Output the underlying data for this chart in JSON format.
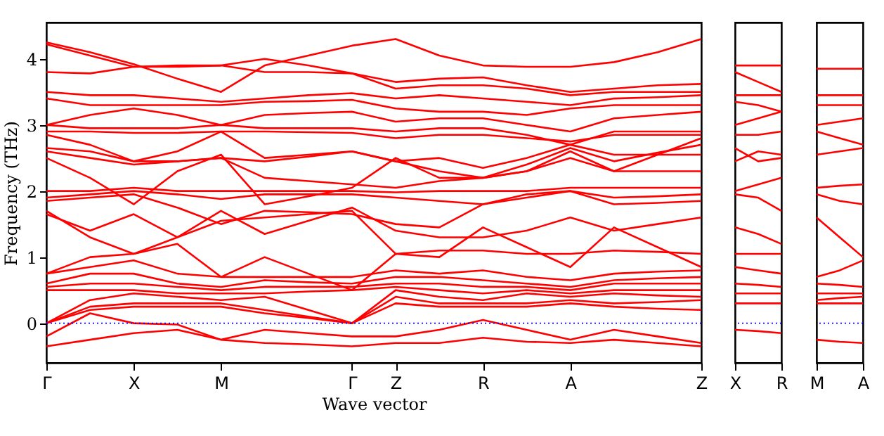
{
  "chart_data": [
    {
      "type": "line",
      "xlabel": "Wave vector",
      "ylabel": "Frequency (THz)",
      "categories": [
        "Γ",
        null,
        "X",
        null,
        "M",
        null,
        null,
        "Γ",
        "Z",
        null,
        "R",
        null,
        "A",
        null,
        null,
        "Z"
      ],
      "ylim": [
        -0.6,
        4.55
      ],
      "yticks": [
        0,
        1,
        2,
        3,
        4
      ],
      "grid": false,
      "line_style": "solid",
      "marker": "none",
      "ref_lines": [
        {
          "axis": "y",
          "value": 0,
          "color": "#0000ff",
          "line_style": "dotted"
        }
      ],
      "series": [
        {
          "color": "#ff0000",
          "values": [
            4.25,
            4.1,
            3.92,
            3.7,
            3.5,
            3.9,
            4.05,
            4.2,
            4.3,
            4.05,
            3.9,
            3.88,
            3.88,
            3.95,
            4.1,
            4.3
          ]
        },
        {
          "color": "#ff0000",
          "values": [
            4.22,
            4.05,
            3.88,
            3.9,
            3.9,
            4.0,
            3.9,
            3.78,
            3.65,
            3.7,
            3.72,
            3.6,
            3.5,
            3.55,
            3.6,
            3.62
          ]
        },
        {
          "color": "#ff0000",
          "values": [
            3.8,
            3.78,
            3.88,
            3.88,
            3.9,
            3.8,
            3.8,
            3.78,
            3.55,
            3.6,
            3.6,
            3.55,
            3.45,
            3.5,
            3.5,
            3.5
          ]
        },
        {
          "color": "#ff0000",
          "values": [
            3.5,
            3.45,
            3.45,
            3.4,
            3.35,
            3.4,
            3.45,
            3.48,
            3.4,
            3.45,
            3.4,
            3.35,
            3.3,
            3.4,
            3.42,
            3.45
          ]
        },
        {
          "color": "#ff0000",
          "values": [
            3.4,
            3.3,
            3.3,
            3.3,
            3.3,
            3.35,
            3.36,
            3.38,
            3.25,
            3.2,
            3.2,
            3.15,
            3.25,
            3.3,
            3.3,
            3.3
          ]
        },
        {
          "color": "#ff0000",
          "values": [
            3.0,
            3.15,
            3.25,
            3.15,
            3.0,
            3.15,
            3.18,
            3.2,
            3.05,
            3.1,
            3.1,
            3.0,
            2.9,
            3.1,
            3.15,
            3.2
          ]
        },
        {
          "color": "#ff0000",
          "values": [
            3.0,
            2.95,
            2.95,
            2.95,
            3.0,
            2.95,
            2.95,
            2.95,
            2.9,
            2.95,
            2.95,
            2.85,
            2.7,
            2.9,
            2.9,
            2.9
          ]
        },
        {
          "color": "#ff0000",
          "values": [
            2.9,
            2.9,
            2.88,
            2.88,
            2.9,
            2.9,
            2.89,
            2.88,
            2.8,
            2.85,
            2.85,
            2.8,
            2.75,
            2.85,
            2.85,
            2.85
          ]
        },
        {
          "color": "#ff0000",
          "values": [
            2.85,
            2.7,
            2.45,
            2.6,
            2.9,
            2.5,
            2.55,
            2.6,
            2.45,
            2.5,
            2.35,
            2.5,
            2.7,
            2.55,
            2.55,
            2.55
          ]
        },
        {
          "color": "#ff0000",
          "values": [
            2.65,
            2.6,
            2.45,
            2.45,
            2.5,
            2.45,
            2.52,
            2.6,
            2.45,
            2.3,
            2.2,
            2.4,
            2.65,
            2.45,
            2.58,
            2.7
          ]
        },
        {
          "color": "#ff0000",
          "values": [
            2.6,
            2.5,
            2.4,
            2.45,
            2.5,
            2.2,
            2.15,
            2.1,
            2.05,
            2.15,
            2.2,
            2.3,
            2.6,
            2.3,
            2.55,
            2.8
          ]
        },
        {
          "color": "#ff0000",
          "values": [
            2.5,
            2.2,
            1.8,
            2.3,
            2.55,
            1.8,
            1.92,
            2.05,
            2.5,
            2.2,
            2.2,
            2.3,
            2.5,
            2.3,
            2.3,
            2.3
          ]
        },
        {
          "color": "#ff0000",
          "values": [
            2.0,
            2.0,
            2.05,
            2.0,
            2.0,
            2.0,
            2.0,
            2.0,
            1.98,
            2.0,
            2.0,
            2.0,
            2.05,
            2.05,
            2.05,
            2.05
          ]
        },
        {
          "color": "#ff0000",
          "values": [
            1.9,
            1.95,
            2.0,
            1.95,
            1.88,
            1.95,
            1.95,
            1.95,
            1.9,
            1.85,
            1.8,
            1.9,
            2.0,
            1.9,
            1.92,
            1.95
          ]
        },
        {
          "color": "#ff0000",
          "values": [
            1.85,
            1.9,
            1.95,
            1.75,
            1.5,
            1.7,
            1.68,
            1.65,
            1.5,
            1.45,
            1.8,
            1.95,
            2.0,
            1.8,
            1.82,
            1.85
          ]
        },
        {
          "color": "#ff0000",
          "values": [
            1.7,
            1.3,
            1.05,
            1.3,
            1.7,
            1.35,
            1.55,
            1.75,
            1.4,
            1.3,
            1.3,
            1.4,
            1.6,
            1.4,
            1.5,
            1.6
          ]
        },
        {
          "color": "#ff0000",
          "values": [
            1.65,
            1.4,
            1.65,
            1.3,
            1.55,
            1.6,
            1.65,
            1.7,
            1.05,
            1.1,
            1.1,
            1.05,
            1.05,
            1.1,
            1.08,
            1.05
          ]
        },
        {
          "color": "#ff0000",
          "values": [
            0.75,
            1.0,
            1.05,
            1.2,
            0.7,
            1.0,
            0.75,
            0.5,
            1.05,
            1.0,
            1.45,
            1.15,
            0.85,
            1.45,
            1.15,
            0.85
          ]
        },
        {
          "color": "#ff0000",
          "values": [
            0.75,
            0.85,
            0.95,
            0.75,
            0.7,
            0.7,
            0.7,
            0.7,
            0.8,
            0.75,
            0.8,
            0.7,
            0.65,
            0.75,
            0.78,
            0.8
          ]
        },
        {
          "color": "#ff0000",
          "values": [
            0.6,
            0.75,
            0.75,
            0.6,
            0.55,
            0.65,
            0.62,
            0.6,
            0.7,
            0.7,
            0.65,
            0.6,
            0.55,
            0.65,
            0.68,
            0.7
          ]
        },
        {
          "color": "#ff0000",
          "values": [
            0.55,
            0.6,
            0.6,
            0.55,
            0.5,
            0.55,
            0.55,
            0.55,
            0.6,
            0.6,
            0.55,
            0.55,
            0.5,
            0.6,
            0.6,
            0.6
          ]
        },
        {
          "color": "#ff0000",
          "values": [
            0.5,
            0.5,
            0.5,
            0.45,
            0.45,
            0.45,
            0.48,
            0.5,
            0.55,
            0.5,
            0.45,
            0.5,
            0.45,
            0.5,
            0.5,
            0.5
          ]
        },
        {
          "color": "#ff0000",
          "values": [
            0.0,
            0.35,
            0.45,
            0.4,
            0.35,
            0.4,
            0.2,
            0.0,
            0.5,
            0.4,
            0.35,
            0.45,
            0.4,
            0.45,
            0.42,
            0.4
          ]
        },
        {
          "color": "#ff0000",
          "values": [
            0.0,
            0.25,
            0.3,
            0.3,
            0.3,
            0.2,
            0.1,
            0.0,
            0.4,
            0.3,
            0.3,
            0.3,
            0.35,
            0.3,
            0.32,
            0.35
          ]
        },
        {
          "color": "#ff0000",
          "values": [
            0.0,
            0.2,
            0.25,
            0.25,
            0.25,
            0.15,
            0.08,
            0.0,
            0.3,
            0.25,
            0.25,
            0.25,
            0.3,
            0.25,
            0.22,
            0.2
          ]
        },
        {
          "color": "#ff0000",
          "values": [
            -0.2,
            0.15,
            0.0,
            -0.02,
            -0.25,
            -0.1,
            -0.15,
            -0.2,
            -0.2,
            -0.1,
            0.05,
            -0.1,
            -0.25,
            -0.1,
            -0.2,
            -0.3
          ]
        },
        {
          "color": "#ff0000",
          "values": [
            -0.35,
            -0.25,
            -0.15,
            -0.1,
            -0.25,
            -0.3,
            -0.32,
            -0.35,
            -0.3,
            -0.3,
            -0.22,
            -0.28,
            -0.3,
            -0.25,
            -0.3,
            -0.35
          ]
        }
      ]
    },
    {
      "type": "line",
      "categories": [
        "X",
        null,
        "R"
      ],
      "ylim": [
        -0.6,
        4.55
      ],
      "tick_labels": "x",
      "grid": false,
      "line_style": "solid",
      "marker": "none",
      "ref_lines": [
        {
          "axis": "y",
          "value": 0,
          "color": "#0000ff",
          "line_style": "dotted"
        }
      ],
      "series": [
        {
          "color": "#ff0000",
          "values": [
            3.9,
            3.9,
            3.9
          ]
        },
        {
          "color": "#ff0000",
          "values": [
            3.8,
            3.65,
            3.5
          ]
        },
        {
          "color": "#ff0000",
          "values": [
            3.45,
            3.45,
            3.45
          ]
        },
        {
          "color": "#ff0000",
          "values": [
            3.35,
            3.3,
            3.2
          ]
        },
        {
          "color": "#ff0000",
          "values": [
            3.0,
            3.1,
            3.2
          ]
        },
        {
          "color": "#ff0000",
          "values": [
            2.85,
            2.85,
            2.9
          ]
        },
        {
          "color": "#ff0000",
          "values": [
            2.65,
            2.45,
            2.5
          ]
        },
        {
          "color": "#ff0000",
          "values": [
            2.45,
            2.6,
            2.55
          ]
        },
        {
          "color": "#ff0000",
          "values": [
            2.0,
            2.1,
            2.2
          ]
        },
        {
          "color": "#ff0000",
          "values": [
            1.95,
            1.9,
            1.7
          ]
        },
        {
          "color": "#ff0000",
          "values": [
            1.45,
            1.35,
            1.2
          ]
        },
        {
          "color": "#ff0000",
          "values": [
            1.05,
            1.05,
            1.05
          ]
        },
        {
          "color": "#ff0000",
          "values": [
            0.85,
            0.8,
            0.75
          ]
        },
        {
          "color": "#ff0000",
          "values": [
            0.6,
            0.58,
            0.55
          ]
        },
        {
          "color": "#ff0000",
          "values": [
            0.45,
            0.45,
            0.45
          ]
        },
        {
          "color": "#ff0000",
          "values": [
            0.3,
            0.3,
            0.3
          ]
        },
        {
          "color": "#ff0000",
          "values": [
            -0.1,
            -0.12,
            -0.15
          ]
        }
      ]
    },
    {
      "type": "line",
      "categories": [
        "M",
        null,
        "A"
      ],
      "ylim": [
        -0.6,
        4.55
      ],
      "tick_labels": "x",
      "grid": false,
      "line_style": "solid",
      "marker": "none",
      "ref_lines": [
        {
          "axis": "y",
          "value": 0,
          "color": "#0000ff",
          "line_style": "dotted"
        }
      ],
      "series": [
        {
          "color": "#ff0000",
          "values": [
            3.85,
            3.85,
            3.85
          ]
        },
        {
          "color": "#ff0000",
          "values": [
            3.45,
            3.45,
            3.45
          ]
        },
        {
          "color": "#ff0000",
          "values": [
            3.3,
            3.3,
            3.3
          ]
        },
        {
          "color": "#ff0000",
          "values": [
            3.0,
            3.05,
            3.1
          ]
        },
        {
          "color": "#ff0000",
          "values": [
            2.9,
            2.8,
            2.7
          ]
        },
        {
          "color": "#ff0000",
          "values": [
            2.55,
            2.6,
            2.65
          ]
        },
        {
          "color": "#ff0000",
          "values": [
            2.05,
            2.08,
            2.1
          ]
        },
        {
          "color": "#ff0000",
          "values": [
            1.95,
            1.85,
            1.8
          ]
        },
        {
          "color": "#ff0000",
          "values": [
            1.6,
            1.3,
            1.0
          ]
        },
        {
          "color": "#ff0000",
          "values": [
            0.7,
            0.8,
            0.95
          ]
        },
        {
          "color": "#ff0000",
          "values": [
            0.6,
            0.58,
            0.55
          ]
        },
        {
          "color": "#ff0000",
          "values": [
            0.45,
            0.45,
            0.45
          ]
        },
        {
          "color": "#ff0000",
          "values": [
            0.35,
            0.38,
            0.4
          ]
        },
        {
          "color": "#ff0000",
          "values": [
            0.3,
            0.3,
            0.3
          ]
        },
        {
          "color": "#ff0000",
          "values": [
            -0.25,
            -0.28,
            -0.3
          ]
        }
      ]
    }
  ]
}
